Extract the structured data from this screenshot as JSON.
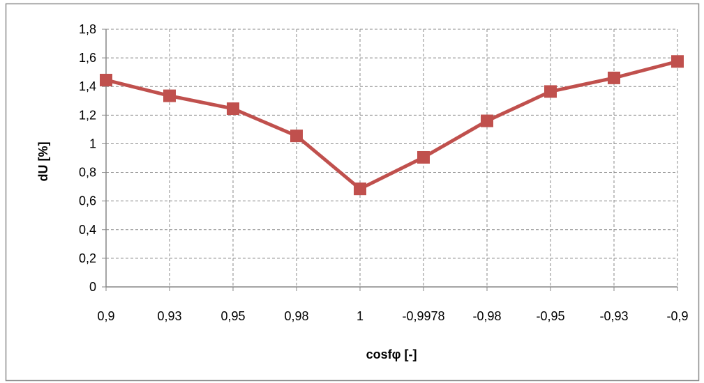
{
  "chart_data": {
    "type": "line",
    "categories": [
      "0,9",
      "0,93",
      "0,95",
      "0,98",
      "1",
      "-0,9978",
      "-0,98",
      "-0,95",
      "-0,93",
      "-0,9"
    ],
    "series": [
      {
        "values": [
          1.445,
          1.335,
          1.245,
          1.055,
          0.685,
          0.905,
          1.16,
          1.365,
          1.46,
          1.575
        ]
      }
    ],
    "xlabel": "cosfφ [-]",
    "ylabel": "dU [%]",
    "ylim": [
      0,
      1.8
    ],
    "yticks": [
      "0",
      "0,2",
      "0,4",
      "0,6",
      "0,8",
      "1",
      "1,2",
      "1,4",
      "1,6",
      "1,8"
    ],
    "grid": true,
    "legend": "none",
    "colors": {
      "series": "#c0504d",
      "grid": "#888888",
      "axis": "#868686",
      "frame": "#8c8c8c"
    }
  }
}
